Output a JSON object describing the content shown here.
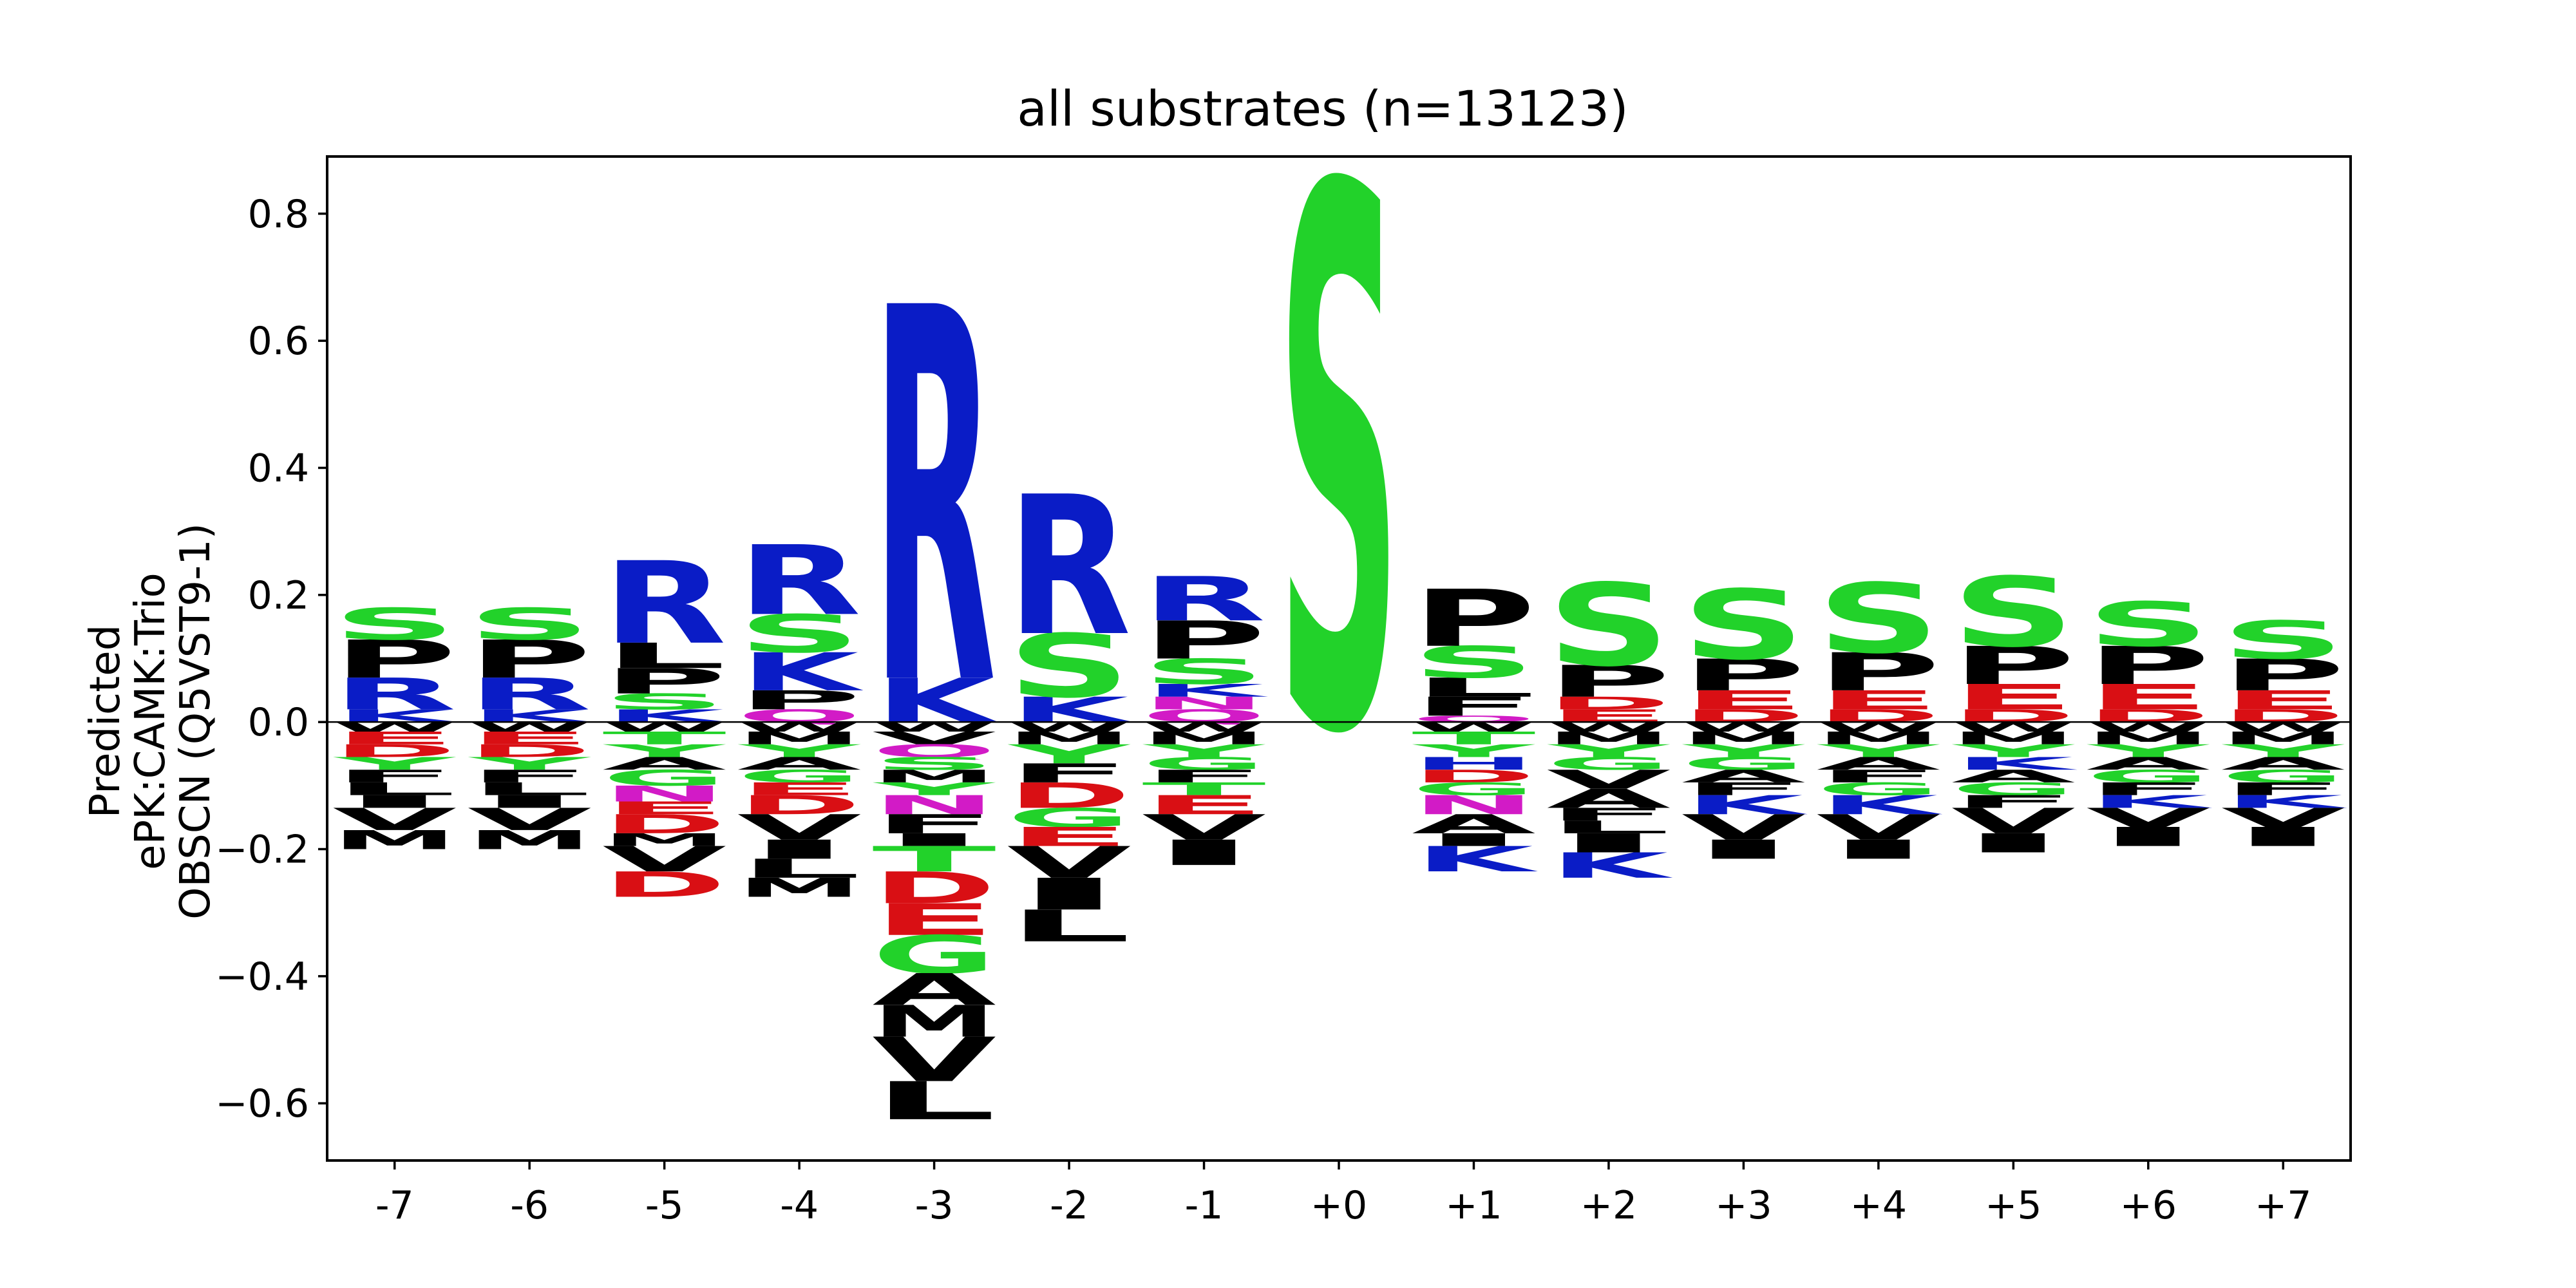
{
  "chart_data": {
    "type": "sequence-logo",
    "title": "all substrates (n=13123)",
    "ylabel_lines": [
      "Predicted",
      "ePK:CAMK:Trio",
      "OBSCN (Q5VST9-1)"
    ],
    "xlabel": "",
    "ylim": [
      -0.69,
      0.89
    ],
    "yticks": [
      -0.6,
      -0.4,
      -0.2,
      0.0,
      0.2,
      0.4,
      0.6,
      0.8
    ],
    "ytick_labels": [
      "−0.6",
      "−0.4",
      "−0.2",
      "0.0",
      "0.2",
      "0.4",
      "0.6",
      "0.8"
    ],
    "positions": [
      "-7",
      "-6",
      "-5",
      "-4",
      "-3",
      "-2",
      "-1",
      "+0",
      "+1",
      "+2",
      "+3",
      "+4",
      "+5",
      "+6",
      "+7"
    ],
    "colors": {
      "S": "#22d22a",
      "T": "#22d22a",
      "G": "#22d22a",
      "Y": "#22d22a",
      "C": "#22d22a",
      "R": "#0a1cc6",
      "K": "#0a1cc6",
      "H": "#0a1cc6",
      "D": "#d90f14",
      "E": "#d90f14",
      "N": "#d21bc6",
      "Q": "#d21bc6",
      "P": "#000000",
      "L": "#000000",
      "V": "#000000",
      "A": "#000000",
      "F": "#000000",
      "M": "#000000",
      "I": "#000000",
      "W": "#000000"
    },
    "columns": [
      {
        "pos": "-7",
        "pos_letters": [
          [
            "K",
            0.02
          ],
          [
            "R",
            0.05
          ],
          [
            "P",
            0.06
          ],
          [
            "S",
            0.05
          ]
        ],
        "neg_letters": [
          [
            "W",
            0.015
          ],
          [
            "E",
            0.02
          ],
          [
            "D",
            0.02
          ],
          [
            "Y",
            0.02
          ],
          [
            "F",
            0.02
          ],
          [
            "L",
            0.02
          ],
          [
            "I",
            0.02
          ],
          [
            "V",
            0.035
          ],
          [
            "M",
            0.03
          ]
        ]
      },
      {
        "pos": "-6",
        "pos_letters": [
          [
            "K",
            0.02
          ],
          [
            "R",
            0.05
          ],
          [
            "P",
            0.06
          ],
          [
            "S",
            0.05
          ]
        ],
        "neg_letters": [
          [
            "W",
            0.015
          ],
          [
            "E",
            0.02
          ],
          [
            "D",
            0.02
          ],
          [
            "Y",
            0.02
          ],
          [
            "F",
            0.02
          ],
          [
            "L",
            0.02
          ],
          [
            "I",
            0.02
          ],
          [
            "V",
            0.035
          ],
          [
            "M",
            0.03
          ]
        ]
      },
      {
        "pos": "-5",
        "pos_letters": [
          [
            "K",
            0.02
          ],
          [
            "S",
            0.025
          ],
          [
            "P",
            0.04
          ],
          [
            "L",
            0.04
          ],
          [
            "R",
            0.13
          ]
        ],
        "neg_letters": [
          [
            "W",
            0.015
          ],
          [
            "T",
            0.02
          ],
          [
            "Y",
            0.02
          ],
          [
            "A",
            0.02
          ],
          [
            "G",
            0.025
          ],
          [
            "N",
            0.025
          ],
          [
            "E",
            0.02
          ],
          [
            "D",
            0.03
          ],
          [
            "M",
            0.02
          ],
          [
            "V",
            0.04
          ],
          [
            "D",
            0.04
          ]
        ]
      },
      {
        "pos": "-4",
        "pos_letters": [
          [
            "Q",
            0.02
          ],
          [
            "P",
            0.03
          ],
          [
            "K",
            0.06
          ],
          [
            "S",
            0.06
          ],
          [
            "R",
            0.11
          ]
        ],
        "neg_letters": [
          [
            "W",
            0.015
          ],
          [
            "M",
            0.02
          ],
          [
            "Y",
            0.02
          ],
          [
            "A",
            0.02
          ],
          [
            "G",
            0.02
          ],
          [
            "E",
            0.02
          ],
          [
            "D",
            0.03
          ],
          [
            "V",
            0.04
          ],
          [
            "I",
            0.03
          ],
          [
            "L",
            0.03
          ],
          [
            "M",
            0.03
          ]
        ]
      },
      {
        "pos": "-3",
        "pos_letters": [
          [
            "K",
            0.07
          ],
          [
            "R",
            0.59
          ]
        ],
        "neg_letters": [
          [
            "W",
            0.015
          ],
          [
            "V",
            0.02
          ],
          [
            "Q",
            0.02
          ],
          [
            "S",
            0.02
          ],
          [
            "M",
            0.02
          ],
          [
            "Y",
            0.02
          ],
          [
            "N",
            0.03
          ],
          [
            "F",
            0.03
          ],
          [
            "I",
            0.02
          ],
          [
            "T",
            0.04
          ],
          [
            "D",
            0.05
          ],
          [
            "E",
            0.05
          ],
          [
            "G",
            0.06
          ],
          [
            "A",
            0.05
          ],
          [
            "M",
            0.05
          ],
          [
            "V",
            0.07
          ],
          [
            "L",
            0.06
          ]
        ]
      },
      {
        "pos": "-2",
        "pos_letters": [
          [
            "K",
            0.04
          ],
          [
            "S",
            0.1
          ],
          [
            "R",
            0.22
          ]
        ],
        "neg_letters": [
          [
            "W",
            0.015
          ],
          [
            "M",
            0.02
          ],
          [
            "Y",
            0.03
          ],
          [
            "F",
            0.03
          ],
          [
            "D",
            0.04
          ],
          [
            "G",
            0.03
          ],
          [
            "E",
            0.03
          ],
          [
            "V",
            0.05
          ],
          [
            "I",
            0.05
          ],
          [
            "L",
            0.05
          ]
        ]
      },
      {
        "pos": "-1",
        "pos_letters": [
          [
            "Q",
            0.02
          ],
          [
            "N",
            0.02
          ],
          [
            "K",
            0.02
          ],
          [
            "S",
            0.04
          ],
          [
            "P",
            0.06
          ],
          [
            "R",
            0.07
          ]
        ],
        "neg_letters": [
          [
            "W",
            0.015
          ],
          [
            "M",
            0.02
          ],
          [
            "Y",
            0.02
          ],
          [
            "G",
            0.02
          ],
          [
            "F",
            0.02
          ],
          [
            "T",
            0.02
          ],
          [
            "E",
            0.03
          ],
          [
            "V",
            0.04
          ],
          [
            "I",
            0.04
          ]
        ]
      },
      {
        "pos": "+0",
        "pos_letters": [
          [
            "S",
            0.85
          ]
        ],
        "neg_letters": []
      },
      {
        "pos": "+1",
        "pos_letters": [
          [
            "Q",
            0.01
          ],
          [
            "F",
            0.03
          ],
          [
            "L",
            0.03
          ],
          [
            "S",
            0.05
          ],
          [
            "P",
            0.09
          ]
        ],
        "neg_letters": [
          [
            "W",
            0.015
          ],
          [
            "T",
            0.02
          ],
          [
            "Y",
            0.02
          ],
          [
            "H",
            0.02
          ],
          [
            "D",
            0.02
          ],
          [
            "G",
            0.02
          ],
          [
            "N",
            0.03
          ],
          [
            "A",
            0.03
          ],
          [
            "I",
            0.02
          ],
          [
            "K",
            0.04
          ]
        ]
      },
      {
        "pos": "+2",
        "pos_letters": [
          [
            "E",
            0.02
          ],
          [
            "D",
            0.02
          ],
          [
            "P",
            0.05
          ],
          [
            "S",
            0.13
          ]
        ],
        "neg_letters": [
          [
            "W",
            0.015
          ],
          [
            "M",
            0.02
          ],
          [
            "Y",
            0.02
          ],
          [
            "G",
            0.02
          ],
          [
            "V",
            0.03
          ],
          [
            "A",
            0.03
          ],
          [
            "F",
            0.02
          ],
          [
            "L",
            0.02
          ],
          [
            "I",
            0.03
          ],
          [
            "K",
            0.04
          ]
        ]
      },
      {
        "pos": "+3",
        "pos_letters": [
          [
            "D",
            0.02
          ],
          [
            "E",
            0.03
          ],
          [
            "P",
            0.05
          ],
          [
            "S",
            0.11
          ]
        ],
        "neg_letters": [
          [
            "W",
            0.015
          ],
          [
            "M",
            0.02
          ],
          [
            "Y",
            0.02
          ],
          [
            "G",
            0.02
          ],
          [
            "A",
            0.02
          ],
          [
            "F",
            0.02
          ],
          [
            "K",
            0.03
          ],
          [
            "V",
            0.04
          ],
          [
            "I",
            0.03
          ]
        ]
      },
      {
        "pos": "+4",
        "pos_letters": [
          [
            "D",
            0.02
          ],
          [
            "E",
            0.03
          ],
          [
            "P",
            0.06
          ],
          [
            "S",
            0.11
          ]
        ],
        "neg_letters": [
          [
            "W",
            0.015
          ],
          [
            "M",
            0.02
          ],
          [
            "Y",
            0.02
          ],
          [
            "A",
            0.02
          ],
          [
            "F",
            0.02
          ],
          [
            "G",
            0.02
          ],
          [
            "K",
            0.03
          ],
          [
            "V",
            0.04
          ],
          [
            "I",
            0.03
          ]
        ]
      },
      {
        "pos": "+5",
        "pos_letters": [
          [
            "D",
            0.02
          ],
          [
            "E",
            0.04
          ],
          [
            "P",
            0.06
          ],
          [
            "S",
            0.11
          ]
        ],
        "neg_letters": [
          [
            "W",
            0.015
          ],
          [
            "M",
            0.02
          ],
          [
            "Y",
            0.02
          ],
          [
            "K",
            0.02
          ],
          [
            "A",
            0.02
          ],
          [
            "G",
            0.02
          ],
          [
            "F",
            0.02
          ],
          [
            "V",
            0.04
          ],
          [
            "I",
            0.03
          ]
        ]
      },
      {
        "pos": "+6",
        "pos_letters": [
          [
            "D",
            0.02
          ],
          [
            "E",
            0.04
          ],
          [
            "P",
            0.06
          ],
          [
            "S",
            0.07
          ]
        ],
        "neg_letters": [
          [
            "W",
            0.015
          ],
          [
            "M",
            0.02
          ],
          [
            "Y",
            0.02
          ],
          [
            "A",
            0.02
          ],
          [
            "G",
            0.02
          ],
          [
            "F",
            0.02
          ],
          [
            "K",
            0.02
          ],
          [
            "V",
            0.03
          ],
          [
            "I",
            0.03
          ]
        ]
      },
      {
        "pos": "+7",
        "pos_letters": [
          [
            "D",
            0.02
          ],
          [
            "E",
            0.03
          ],
          [
            "P",
            0.05
          ],
          [
            "S",
            0.06
          ]
        ],
        "neg_letters": [
          [
            "W",
            0.015
          ],
          [
            "M",
            0.02
          ],
          [
            "Y",
            0.02
          ],
          [
            "A",
            0.02
          ],
          [
            "G",
            0.02
          ],
          [
            "F",
            0.02
          ],
          [
            "K",
            0.02
          ],
          [
            "V",
            0.03
          ],
          [
            "I",
            0.03
          ]
        ]
      }
    ]
  }
}
